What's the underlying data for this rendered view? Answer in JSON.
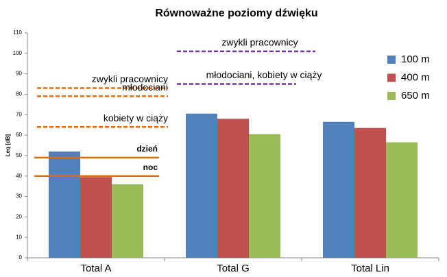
{
  "chart_data": {
    "type": "bar",
    "title": "Równoważne poziomy dźwięku",
    "y_label": "Leq [dB]",
    "categories": [
      "Total A",
      "Total G",
      "Total Lin"
    ],
    "series": [
      {
        "name": "100 m",
        "color": "#4f81bd",
        "values": [
          52,
          70.5,
          66.5
        ]
      },
      {
        "name": "400 m",
        "color": "#c0504d",
        "values": [
          39.5,
          68,
          63.5
        ]
      },
      {
        "name": "650 m",
        "color": "#9bbb59",
        "values": [
          36,
          60.5,
          56.5
        ]
      }
    ],
    "ylim": [
      0,
      110
    ],
    "yticks": [
      0,
      10,
      20,
      30,
      40,
      50,
      60,
      70,
      80,
      90,
      100,
      110
    ],
    "grid": false,
    "legend": "right",
    "annotations": [
      {
        "text": "zwykli pracownicy",
        "value": 83,
        "color": "#e36c0a",
        "dashed": true,
        "category": "Total A"
      },
      {
        "text": "młodociani",
        "value": 79,
        "color": "#e36c0a",
        "dashed": true,
        "category": "Total A"
      },
      {
        "text": "kobiety w ciąży",
        "value": 64,
        "color": "#e36c0a",
        "dashed": true,
        "category": "Total A"
      },
      {
        "text": "dzień",
        "value": 49,
        "color": "#e36c0a",
        "dashed": false,
        "category": "Total A"
      },
      {
        "text": "noc",
        "value": 40,
        "color": "#e36c0a",
        "dashed": false,
        "category": "Total A"
      },
      {
        "text": "zwykli pracownicy",
        "value": 101,
        "color": "#7030a0",
        "dashed": true,
        "category": "Total G"
      },
      {
        "text": "młodociani, kobiety w ciąży",
        "value": 85,
        "color": "#7030a0",
        "dashed": true,
        "category": "Total G"
      }
    ]
  }
}
